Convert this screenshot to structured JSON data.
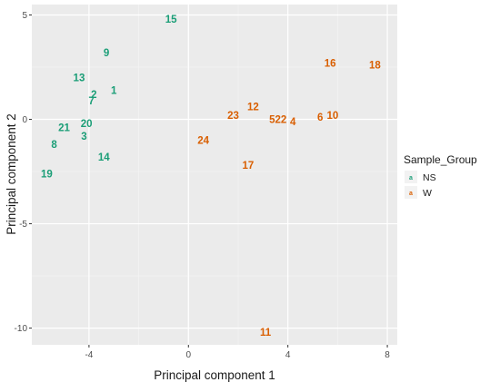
{
  "chart_data": {
    "type": "scatter",
    "xlabel": "Principal component 1",
    "ylabel": "Principal component 2",
    "xlim": [
      -6.3,
      8.4
    ],
    "ylim": [
      -10.8,
      5.5
    ],
    "x_ticks": [
      -4,
      0,
      4,
      8
    ],
    "y_ticks": [
      5,
      0,
      -5,
      -10
    ],
    "x_tick_labels": [
      "-4",
      "0",
      "4",
      "8"
    ],
    "y_tick_labels": [
      "5",
      "0",
      "-5",
      "-10"
    ],
    "grid": true,
    "background": "#ebebeb",
    "legend": {
      "title": "Sample_Group",
      "placement": "right",
      "key_glyph": "a"
    },
    "series": [
      {
        "name": "NS",
        "color": "#1b9e77",
        "points": [
          {
            "label": "15",
            "x": -0.7,
            "y": 4.8
          },
          {
            "label": "9",
            "x": -3.3,
            "y": 3.2
          },
          {
            "label": "13",
            "x": -4.4,
            "y": 2.0
          },
          {
            "label": "1",
            "x": -3.0,
            "y": 1.4
          },
          {
            "label": "2",
            "x": -3.8,
            "y": 1.2
          },
          {
            "label": "7",
            "x": -3.9,
            "y": 0.9
          },
          {
            "label": "21",
            "x": -5.0,
            "y": -0.4
          },
          {
            "label": "20",
            "x": -4.1,
            "y": -0.2
          },
          {
            "label": "3",
            "x": -4.2,
            "y": -0.8
          },
          {
            "label": "8",
            "x": -5.4,
            "y": -1.2
          },
          {
            "label": "14",
            "x": -3.4,
            "y": -1.8
          },
          {
            "label": "19",
            "x": -5.7,
            "y": -2.6
          }
        ]
      },
      {
        "name": "W",
        "color": "#d95f02",
        "points": [
          {
            "label": "16",
            "x": 5.7,
            "y": 2.7
          },
          {
            "label": "18",
            "x": 7.5,
            "y": 2.6
          },
          {
            "label": "12",
            "x": 2.6,
            "y": 0.6
          },
          {
            "label": "23",
            "x": 1.8,
            "y": 0.2
          },
          {
            "label": "522",
            "x": 3.6,
            "y": 0.0
          },
          {
            "label": "4",
            "x": 4.2,
            "y": -0.1
          },
          {
            "label": "6",
            "x": 5.3,
            "y": 0.1
          },
          {
            "label": "10",
            "x": 5.8,
            "y": 0.2
          },
          {
            "label": "24",
            "x": 0.6,
            "y": -1.0
          },
          {
            "label": "17",
            "x": 2.4,
            "y": -2.2
          },
          {
            "label": "11",
            "x": 3.1,
            "y": -10.2
          }
        ]
      }
    ]
  }
}
